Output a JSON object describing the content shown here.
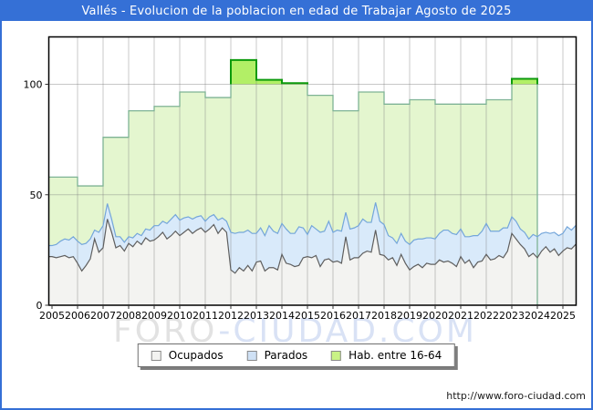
{
  "title_bar": {
    "text": "Vallés - Evolucion de la poblacion en edad de Trabajar Agosto de 2025"
  },
  "footer": {
    "url": "http://www.foro-ciudad.com"
  },
  "watermark": {
    "part1": "FORO",
    "part2": "-CIUDAD.COM"
  },
  "legend": {
    "items": [
      {
        "key": "ocupados",
        "label": "Ocupados",
        "color": "#f3f3f1",
        "border": "#8a8a8a"
      },
      {
        "key": "parados",
        "label": "Parados",
        "color": "#cfe1f5",
        "border": "#8a8a8a"
      },
      {
        "key": "hab",
        "label": "Hab. entre 16-64",
        "color": "#c9f285",
        "border": "#8a8a8a"
      }
    ]
  },
  "chart_data": {
    "type": "area",
    "title": "Vallés - Evolucion de la poblacion en edad de Trabajar Agosto de 2025",
    "xlabel": "",
    "ylabel": "",
    "ylim": [
      0,
      121
    ],
    "y_ticks": [
      0,
      50,
      100
    ],
    "grid": true,
    "legend_position": "bottom",
    "x_tick_labels": [
      "2005",
      "2006",
      "2007",
      "2008",
      "2009",
      "2010",
      "2011",
      "2012",
      "2013",
      "2014",
      "2015",
      "2016",
      "2017",
      "2018",
      "2019",
      "2020",
      "2021",
      "2022",
      "2023",
      "2024",
      "2025"
    ],
    "time_start": 2005,
    "time_step_years": 0.166667,
    "time_end": 2025.667,
    "series": [
      {
        "name": "Ocupados",
        "kind": "monthly",
        "stacking": "base",
        "values": [
          22,
          21.5,
          22,
          22.5,
          21.5,
          22,
          19,
          15.5,
          18,
          21,
          30,
          24,
          26,
          39,
          33,
          26,
          27,
          24.5,
          28,
          26.5,
          29,
          27.5,
          30.5,
          29,
          29.5,
          31,
          33,
          30,
          31.5,
          33.5,
          31.5,
          33,
          34.5,
          32.5,
          34,
          35,
          33,
          34.5,
          36.5,
          32.5,
          35,
          33,
          16,
          14.5,
          17,
          15.5,
          18,
          15.5,
          19.5,
          20,
          15.5,
          17,
          17,
          16,
          23,
          19,
          18.5,
          17.5,
          18,
          21.5,
          22,
          21.5,
          22.5,
          17.5,
          20.5,
          21,
          19.5,
          20,
          19,
          31,
          20.5,
          21.5,
          21.5,
          23.5,
          24.5,
          24,
          34,
          23,
          22.5,
          20.5,
          21.5,
          18,
          23,
          19,
          16,
          17.5,
          18.5,
          17,
          19,
          18.5,
          18.5,
          20.5,
          19.5,
          20,
          19,
          17.5,
          22,
          19,
          20.5,
          17,
          19.5,
          20,
          23,
          20.5,
          21,
          22.5,
          21.5,
          24.5,
          32.5,
          30,
          27.5,
          25.5,
          22,
          23.5,
          21.5,
          24.5,
          26.5,
          24,
          25.5,
          22.5,
          24.5,
          26,
          25.5,
          27.5,
          29
        ]
      },
      {
        "name": "Parados",
        "kind": "monthly",
        "stacking": "on-top-of-ocupados",
        "values": [
          5,
          6,
          7,
          7.5,
          8,
          9,
          10,
          12,
          10,
          9,
          4,
          9,
          10,
          7,
          6,
          5,
          4,
          4,
          3,
          4,
          3.5,
          4,
          4,
          5,
          6.5,
          5,
          5,
          7,
          7.5,
          7.5,
          7,
          6.5,
          5.5,
          6.5,
          6,
          5.5,
          5,
          5.5,
          4.5,
          6,
          4.5,
          5,
          17,
          18,
          16,
          17.5,
          16,
          17,
          13,
          15,
          16,
          19,
          16.5,
          16.5,
          14,
          15.5,
          14,
          15,
          17.5,
          13.5,
          10,
          14.5,
          12,
          15.5,
          13,
          17,
          13.5,
          14,
          14.5,
          11,
          14,
          13.5,
          14.5,
          15.5,
          13,
          13.5,
          12.5,
          15,
          14,
          11,
          9,
          10,
          9.5,
          10,
          11.5,
          12,
          11.5,
          13,
          11.5,
          12,
          11.5,
          12,
          14.5,
          14,
          13.5,
          14.5,
          12.5,
          12,
          10.5,
          14.5,
          12,
          13.5,
          14,
          13,
          12.5,
          11,
          13.5,
          10.5,
          7.5,
          8,
          7,
          7.5,
          8,
          8.5,
          9.5,
          8,
          6.5,
          8.5,
          7.5,
          9,
          8,
          9.5,
          8.5,
          8.5,
          7.5
        ]
      },
      {
        "name": "Hab. entre 16-64",
        "kind": "annual-steps",
        "ends_at": 2024,
        "years": [
          2005,
          2006,
          2007,
          2008,
          2009,
          2010,
          2011,
          2012,
          2013,
          2014,
          2015,
          2016,
          2017,
          2018,
          2019,
          2020,
          2021,
          2022,
          2023
        ],
        "values": [
          58,
          54,
          76,
          88,
          90,
          96.5,
          94,
          111,
          102,
          100.5,
          95,
          88,
          96.5,
          91,
          93,
          91,
          91,
          93,
          102.5
        ]
      }
    ],
    "colors": {
      "title_bar": "#3570d6",
      "frame_border": "#3570d6",
      "plot_border": "#000000",
      "grid": "#cccccc",
      "ocupados_fill": "#f3f3f1",
      "ocupados_line": "#5f5f5f",
      "parados_fill": "#d9eafa",
      "parados_line": "#74a6da",
      "hab_fill": "#e4f6cf",
      "hab_fill_over_100": "#b2ef66",
      "hab_line": "#7eb395",
      "hab_line_over_100": "#0c9a0c",
      "axis_text": "#000000",
      "watermark_gray": "#e2e2e2",
      "watermark_blue": "#d9e2f5"
    }
  }
}
